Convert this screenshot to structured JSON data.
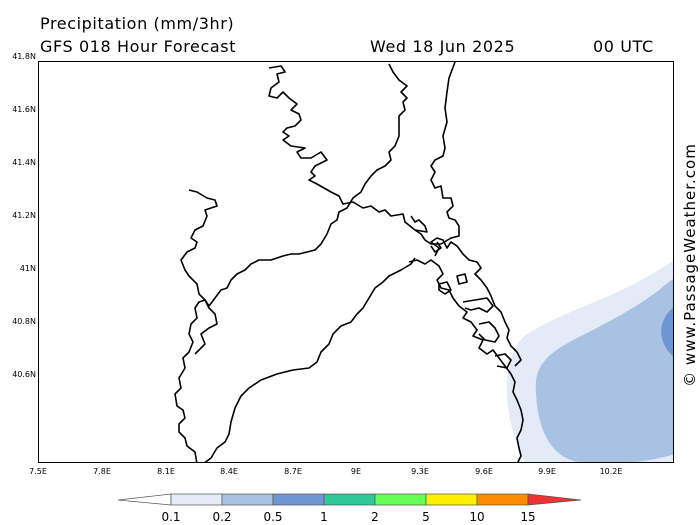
{
  "header": {
    "title": "Precipitation (mm/3hr)",
    "model": "GFS 018 Hour Forecast",
    "date": "Wed 18 Jun 2025",
    "time": "00 UTC"
  },
  "credit": "© www.PassageWeather.com",
  "axes": {
    "lat_labels": [
      "41.8N",
      "41.6N",
      "41.4N",
      "41.2N",
      "41N",
      "40.8N",
      "40.6N"
    ],
    "lon_labels": [
      "7.5E",
      "7.8E",
      "8.1E",
      "8.4E",
      "8.7E",
      "9E",
      "9.3E",
      "9.6E",
      "9.9E",
      "10.2E"
    ]
  },
  "legend": {
    "labels": [
      "0.1",
      "0.2",
      "0.5",
      "1",
      "2",
      "5",
      "10",
      "15"
    ],
    "colors": [
      "#ffffff",
      "#e3ebf7",
      "#a9c2e3",
      "#6f96d4",
      "#30c898",
      "#66ff55",
      "#ffee00",
      "#ff8c00",
      "#ee3333"
    ]
  },
  "precip_colors": {
    "light": "#e3ebf7",
    "moderate": "#a9c2e3",
    "heavy": "#6f96d4"
  }
}
